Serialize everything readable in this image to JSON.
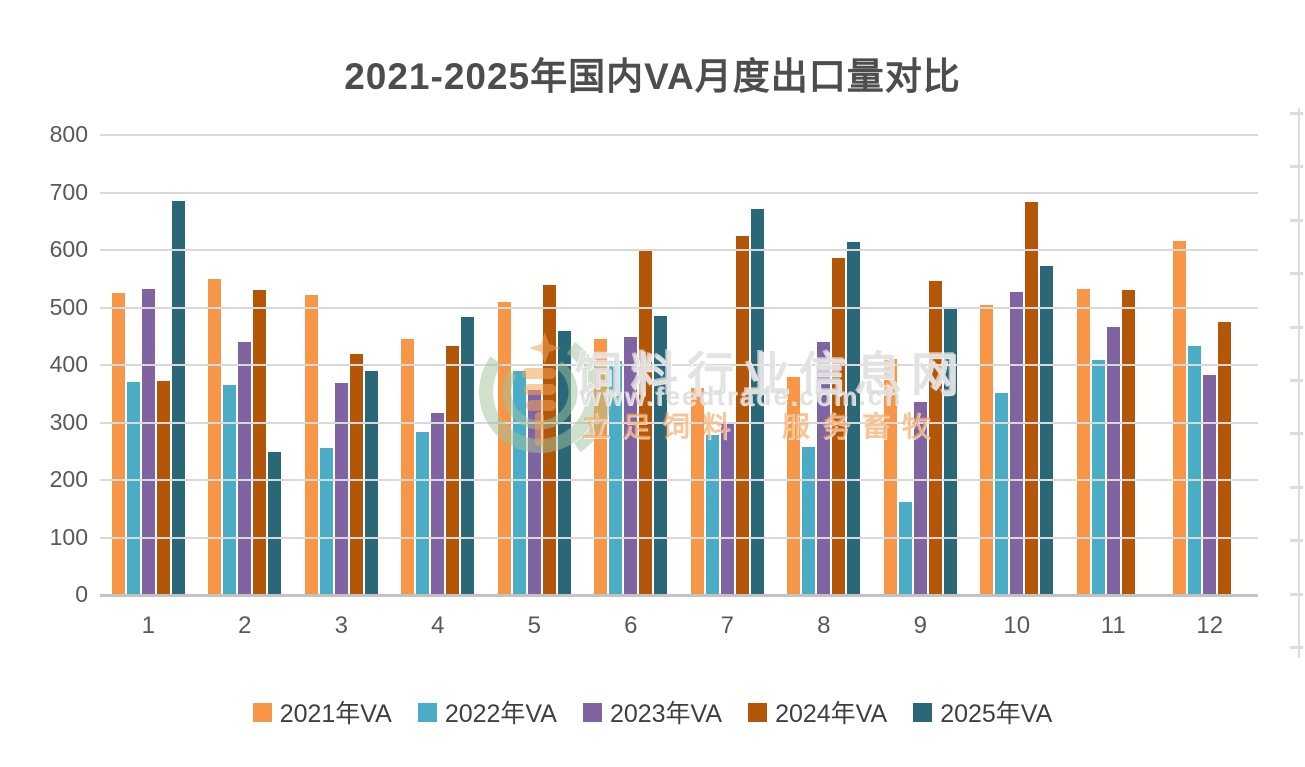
{
  "title": "2021-2025年国内VA月度出口量对比",
  "watermark": {
    "line1": "饲料行业信息网",
    "line2": "www.feedtrade.com.cn",
    "line3": "立足饲料　服务畜牧"
  },
  "colors": {
    "series_2021": "#F79646",
    "series_2022": "#4BACC6",
    "series_2023": "#8064A2",
    "series_2024": "#B45608",
    "series_2025": "#2A6777",
    "gridline": "#D9D9D9",
    "axis_text": "#595959",
    "title_text": "#4D4D4D"
  },
  "chart_data": {
    "type": "bar",
    "title": "2021-2025年国内VA月度出口量对比",
    "xlabel": "",
    "ylabel": "",
    "categories": [
      "1",
      "2",
      "3",
      "4",
      "5",
      "6",
      "7",
      "8",
      "9",
      "10",
      "11",
      "12"
    ],
    "series": [
      {
        "name": "2021年VA",
        "color": "#F79646",
        "values": [
          525,
          549,
          521,
          445,
          509,
          446,
          360,
          379,
          411,
          504,
          532,
          616
        ]
      },
      {
        "name": "2022年VA",
        "color": "#4BACC6",
        "values": [
          371,
          366,
          255,
          283,
          390,
          407,
          278,
          258,
          161,
          352,
          409,
          433
        ]
      },
      {
        "name": "2023年VA",
        "color": "#8064A2",
        "values": [
          532,
          440,
          369,
          316,
          357,
          448,
          301,
          440,
          336,
          527,
          466,
          382
        ]
      },
      {
        "name": "2024年VA",
        "color": "#B45608",
        "values": [
          372,
          530,
          419,
          434,
          539,
          600,
          624,
          587,
          546,
          683,
          530,
          474
        ]
      },
      {
        "name": "2025年VA",
        "color": "#2A6777",
        "values": [
          685,
          249,
          390,
          484,
          460,
          486,
          671,
          614,
          499,
          572,
          null,
          null
        ]
      }
    ],
    "ylim": [
      0,
      800
    ],
    "y_ticks": [
      0,
      100,
      200,
      300,
      400,
      500,
      600,
      700,
      800
    ],
    "grid": true,
    "legend_position": "bottom"
  }
}
